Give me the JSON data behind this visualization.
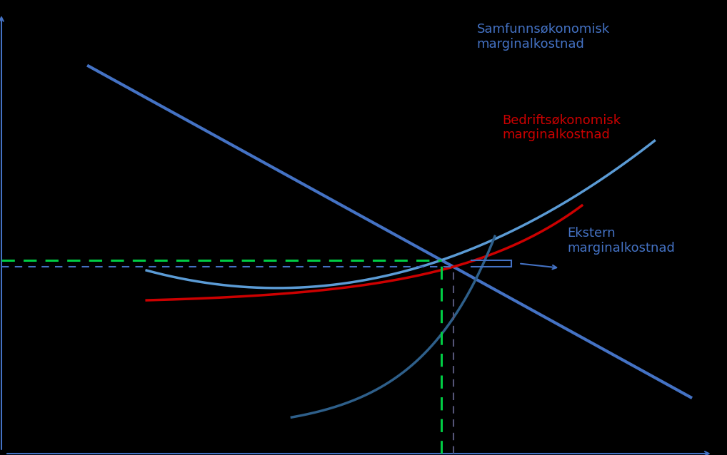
{
  "background_color": "#000000",
  "axes_color": "#4472c4",
  "text_color_blue": "#4472c4",
  "curve_demand_color": "#4472c4",
  "curve_external_color": "#5b9bd5",
  "curve_bedrift_color": "#cc0000",
  "curve_samfunn_color": "#2e5f8a",
  "green_dashed_color": "#00cc44",
  "blue_dashed_color": "#4472c4",
  "black_dashed_color": "#555577",
  "label_samfunn": "Samfunnsøkonomisk\nmarginalkostnad",
  "label_bedrift": "Bedriftsøkonomisk\nmarginalkostnad",
  "label_ekstern": "Ekstern\nmarginalkostnad",
  "xlim": [
    0,
    10
  ],
  "ylim": [
    0,
    10
  ]
}
